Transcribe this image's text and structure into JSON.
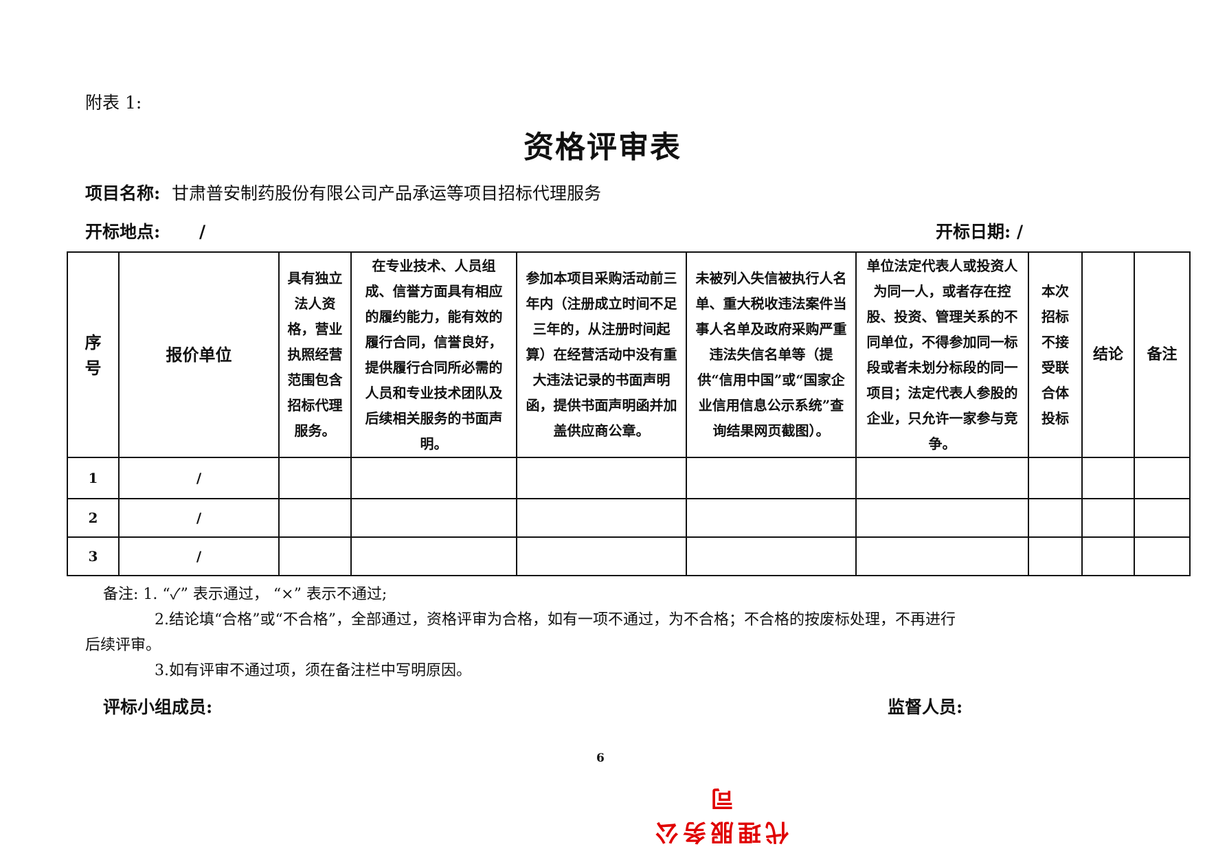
{
  "attachment_label": "附表 1:",
  "title": "资格评审表",
  "project": {
    "label": "项目名称:",
    "value": "甘肃普安制药股份有限公司产品承运等项目招标代理服务"
  },
  "location": {
    "label": "开标地点:",
    "value": "/"
  },
  "date": {
    "label": "开标日期:",
    "value": "/"
  },
  "table": {
    "headers": [
      "序号",
      "报价单位",
      "具有独立法人资格，营业执照经营范围包含招标代理服务。",
      "在专业技术、人员组成、信誉方面具有相应的履约能力，能有效的履行合同，信誉良好，提供履行合同所必需的人员和专业技术团队及后续相关服务的书面声明。",
      "参加本项目采购活动前三年内（注册成立时间不足三年的，从注册时间起算）在经营活动中没有重大违法记录的书面声明函，提供书面声明函并加盖供应商公章。",
      "未被列入失信被执行人名单、重大税收违法案件当事人名单及政府采购严重违法失信名单等（提供“信用中国”或“国家企业信用信息公示系统”查询结果网页截图）。",
      "单位法定代表人或投资人为同一人，或者存在控股、投资、管理关系的不同单位，不得参加同一标段或者未划分标段的同一项目；法定代表人参股的企业，只允许一家参与竞争。",
      "本次招标不接受联合体投标",
      "结论",
      "备注"
    ],
    "rows": [
      [
        "1",
        "/"
      ],
      [
        "2",
        "/"
      ],
      [
        "3",
        "/"
      ]
    ]
  },
  "notes": [
    "备注: 1. “✓” 表示通过， “×” 表示不通过;",
    "2.结论填“合格”或“不合格”，全部通过，资格评审为合格，如有一项不通过，为不合格；不合格的按废标处理，不再进行",
    "后续评审。",
    "3.如有评审不通过项，须在备注栏中写明原因。"
  ],
  "signatures": {
    "panel": "评标小组成员:",
    "supervisor": "监督人员:"
  },
  "page_number": "6",
  "stamp": {
    "text": "代理服务公司",
    "color": "#e00000"
  }
}
